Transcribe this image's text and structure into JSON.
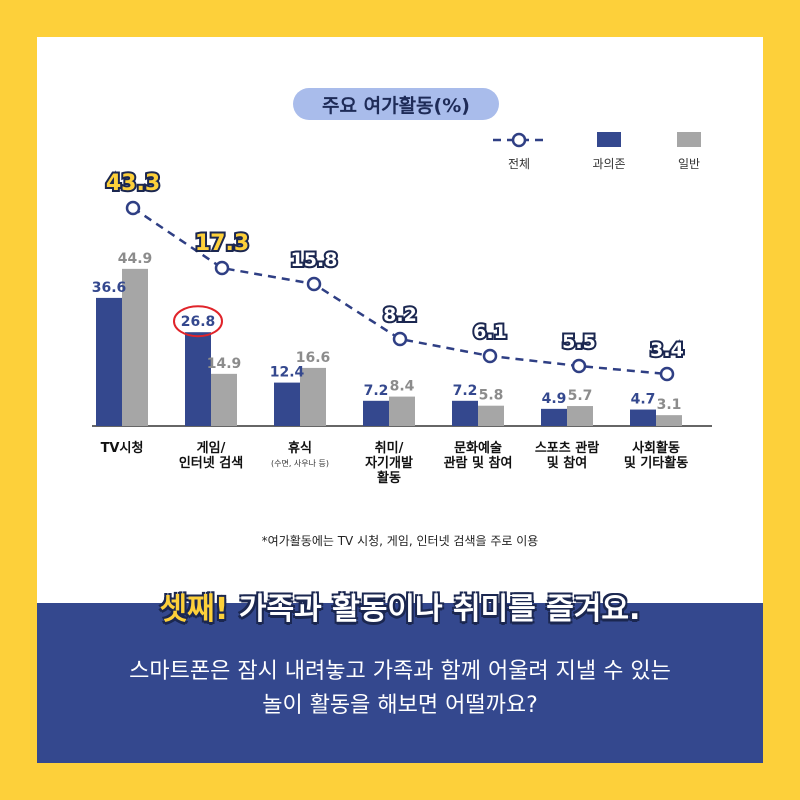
{
  "chart_title": "주요 여가활동(%)",
  "headline": {
    "accent": "셋째!",
    "rest": " 가족과 활동이나 취미를 즐겨요."
  },
  "body_lines": [
    "스마트폰은 잠시 내려놓고 가족과 함께 어울려 지낼 수 있는",
    "놀이 활동을 해보면 어떨까요?"
  ],
  "footnote": "*여가활동에는 TV 시청, 게임, 인터넷 검색을 주로 이용",
  "colors": {
    "background": "#FDD03A",
    "band": "#34488E",
    "addicted": "#34488E",
    "general": "#A6A6A6",
    "total_line": "#2F3F84",
    "highlight_circle": "#E0242A",
    "title_pill": "#A9BCEB"
  },
  "chart_data": {
    "type": "bar",
    "title": "주요 여가활동(%)",
    "categories": [
      "TV시청",
      "게임/\n인터넷 검색",
      "휴식",
      "취미/\n자기개발\n활동",
      "문화예술\n관람 및 참여",
      "스포츠 관람\n및 참여",
      "사회활동\n및 기타활동"
    ],
    "category_notes": [
      "",
      "",
      "(수면, 사우나 등)",
      "",
      "",
      "",
      ""
    ],
    "series": [
      {
        "name": "과의존",
        "values": [
          36.6,
          26.8,
          12.4,
          7.2,
          7.2,
          4.9,
          4.7
        ],
        "kind": "bar"
      },
      {
        "name": "일반",
        "values": [
          44.9,
          14.9,
          16.6,
          8.4,
          5.8,
          5.7,
          3.1
        ],
        "kind": "bar"
      },
      {
        "name": "전체",
        "values": [
          43.3,
          17.3,
          15.8,
          8.2,
          6.1,
          5.5,
          3.4
        ],
        "kind": "line"
      }
    ],
    "highlighted_value": 26.8,
    "highlight_colored_totals": [
      43.3,
      17.3
    ],
    "legend": [
      "전체",
      "과의존",
      "일반"
    ],
    "legend_position": "top-right",
    "ylim": [
      0,
      50
    ],
    "grid": false
  }
}
